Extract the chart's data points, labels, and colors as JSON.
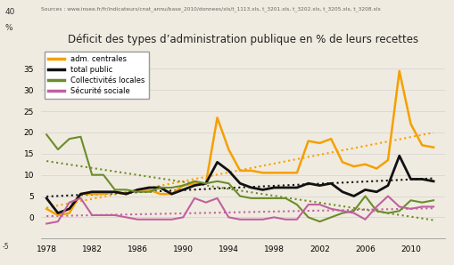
{
  "title": "Déficit des types d’administration publique en % de leurs recettes",
  "source_text": "Sources : www.insee.fr/fr/indicateurs/cnat_annu/base_2010/donnees/xls/t_1113.xls, t_3201.xls, t_3202.xls, t_3205.xls, t_3208.xls",
  "years": [
    1978,
    1979,
    1980,
    1981,
    1982,
    1983,
    1984,
    1985,
    1986,
    1987,
    1988,
    1989,
    1990,
    1991,
    1992,
    1993,
    1994,
    1995,
    1996,
    1997,
    1998,
    1999,
    2000,
    2001,
    2002,
    2003,
    2004,
    2005,
    2006,
    2007,
    2008,
    2009,
    2010,
    2011,
    2012
  ],
  "adm_centrales": [
    2.0,
    0.5,
    1.0,
    5.5,
    5.5,
    5.5,
    6.0,
    5.5,
    6.5,
    6.5,
    5.5,
    5.5,
    7.5,
    8.0,
    8.0,
    23.5,
    16.0,
    11.0,
    11.0,
    10.5,
    10.5,
    10.5,
    10.5,
    18.0,
    17.5,
    18.5,
    13.0,
    12.0,
    12.5,
    11.5,
    13.5,
    34.5,
    22.0,
    17.0,
    16.5
  ],
  "total_public": [
    4.5,
    1.0,
    2.0,
    5.5,
    6.0,
    6.0,
    6.0,
    5.5,
    6.5,
    7.0,
    7.0,
    5.5,
    6.5,
    7.5,
    8.0,
    13.0,
    11.0,
    8.0,
    7.0,
    6.5,
    7.0,
    7.0,
    7.0,
    8.0,
    7.5,
    8.0,
    6.0,
    5.0,
    6.5,
    6.0,
    7.5,
    14.5,
    9.0,
    9.0,
    8.5
  ],
  "collectivites": [
    19.5,
    16.0,
    18.5,
    19.0,
    10.0,
    10.0,
    6.5,
    6.5,
    6.0,
    6.0,
    7.0,
    7.0,
    7.5,
    8.5,
    8.0,
    8.5,
    8.0,
    5.0,
    4.5,
    4.5,
    4.5,
    4.5,
    3.0,
    0.0,
    -1.0,
    0.0,
    1.0,
    1.5,
    5.0,
    1.5,
    1.0,
    1.5,
    4.0,
    3.5,
    4.0
  ],
  "securite_sociale": [
    -1.5,
    -1.0,
    3.5,
    4.5,
    0.5,
    0.5,
    0.5,
    0.0,
    -0.5,
    -0.5,
    -0.5,
    -0.5,
    0.0,
    4.5,
    3.5,
    4.5,
    0.0,
    -0.5,
    -0.5,
    -0.5,
    0.0,
    -0.5,
    -0.5,
    3.0,
    3.0,
    2.0,
    1.5,
    1.0,
    -0.5,
    2.5,
    5.0,
    2.5,
    2.0,
    2.5,
    2.5
  ],
  "color_adm": "#f5a000",
  "color_total": "#111111",
  "color_collectivites": "#6b8c2a",
  "color_securite": "#c060a0",
  "ylim": [
    -5,
    40
  ],
  "yticks": [
    0,
    5,
    10,
    15,
    20,
    25,
    30,
    35
  ],
  "bg_color": "#f0ebe0",
  "xtick_years": [
    1978,
    1982,
    1986,
    1990,
    1994,
    1998,
    2002,
    2006,
    2010
  ]
}
